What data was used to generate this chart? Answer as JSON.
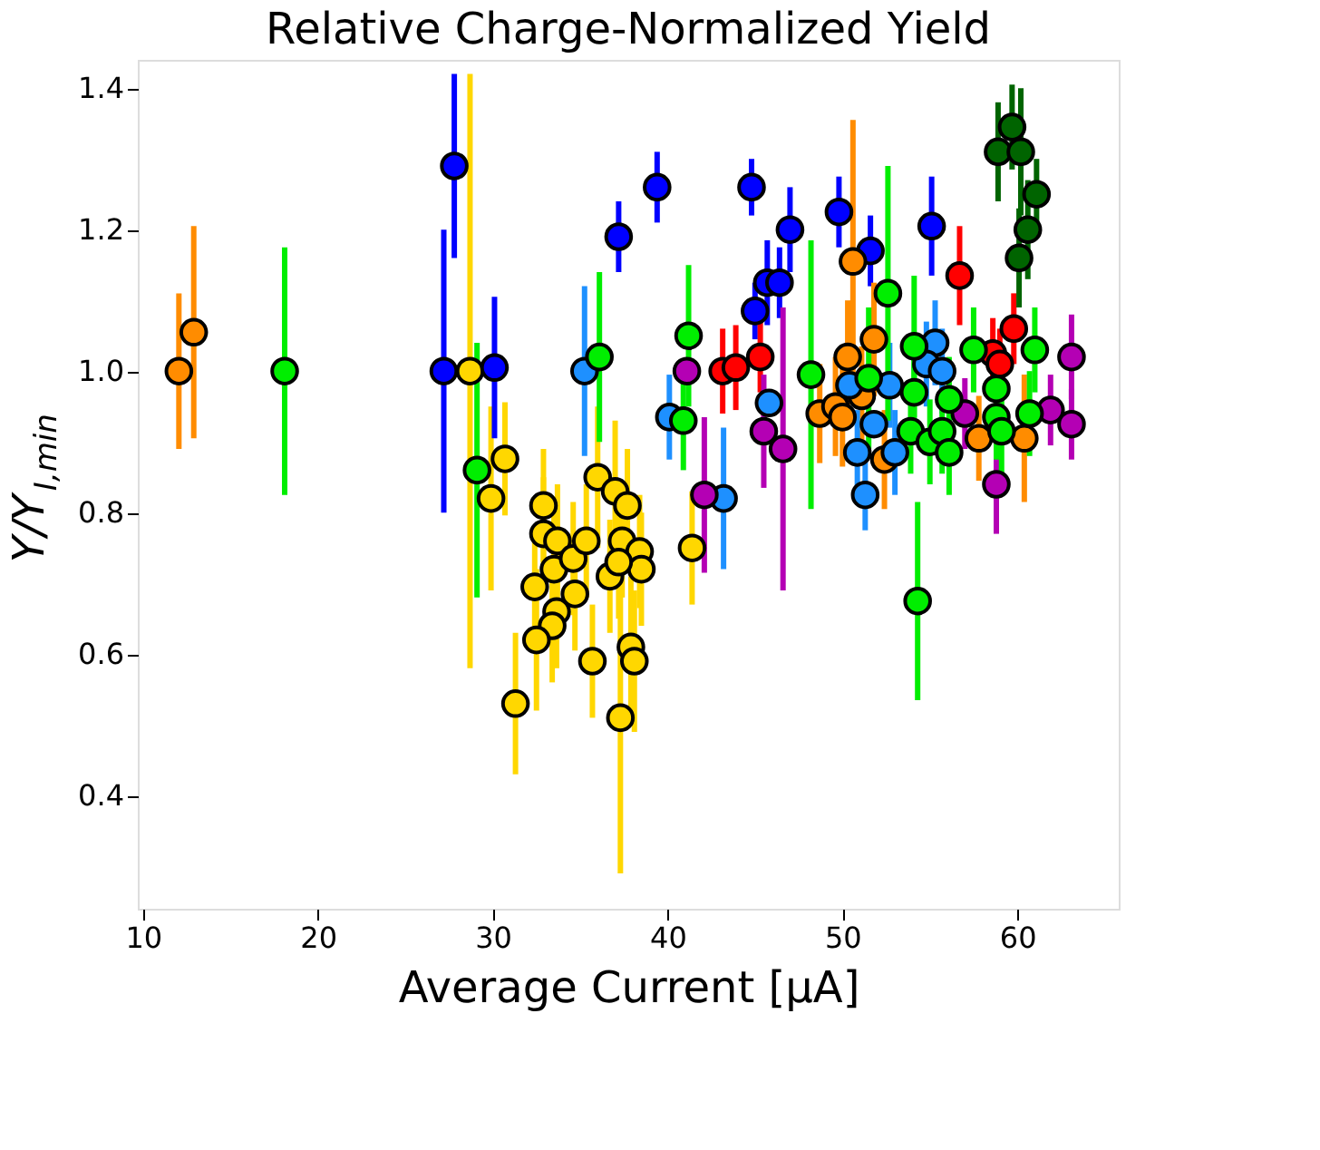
{
  "chart_data": {
    "type": "scatter",
    "title": "Relative Charge-Normalized Yield",
    "xlabel": "Average Current [μA]",
    "ylabel": "Y/Y$_{I,min}$",
    "xlim": [
      9.7,
      65.8
    ],
    "ylim": [
      0.24,
      1.44
    ],
    "xticks": [
      10,
      20,
      30,
      40,
      50,
      60
    ],
    "yticks": [
      0.4,
      0.6,
      0.8,
      {
        "value": 1.0,
        "label": "1.0"
      },
      1.2,
      1.4
    ],
    "grid": false,
    "legend": false,
    "marker": "circle",
    "series": [
      {
        "color": "#ffd700",
        "x": [
          28.7,
          29.9,
          30.7,
          31.3,
          32.9,
          32.9,
          33.7,
          32.4,
          33.5,
          34.6,
          34.7,
          33.65,
          33.4,
          32.5,
          35.35,
          36.0,
          37.0,
          37.7,
          37.4,
          38.4,
          38.5,
          36.7,
          37.2,
          35.7,
          37.9,
          38.1,
          37.3,
          41.4
        ],
        "values": [
          1.0,
          0.82,
          0.876,
          0.53,
          0.81,
          0.77,
          0.76,
          0.695,
          0.72,
          0.735,
          0.685,
          0.66,
          0.64,
          0.62,
          0.76,
          0.85,
          0.83,
          0.81,
          0.76,
          0.745,
          0.72,
          0.71,
          0.73,
          0.59,
          0.61,
          0.59,
          0.51,
          0.75
        ],
        "errors": [
          0.42,
          0.13,
          0.08,
          0.1,
          0.08,
          0.08,
          0.08,
          0.08,
          0.08,
          0.08,
          0.08,
          0.08,
          0.08,
          0.1,
          0.08,
          0.1,
          0.1,
          0.08,
          0.08,
          0.08,
          0.08,
          0.08,
          0.08,
          0.08,
          0.1,
          0.1,
          0.22,
          0.08
        ]
      },
      {
        "color": "#0000ff",
        "x": [
          27.2,
          27.8,
          30.1,
          37.2,
          39.4,
          44.8,
          47.0,
          45.0,
          45.7,
          46.4,
          49.8,
          51.6,
          55.1
        ],
        "values": [
          1.0,
          1.29,
          1.005,
          1.19,
          1.26,
          1.26,
          1.2,
          1.085,
          1.125,
          1.125,
          1.225,
          1.17,
          1.205
        ],
        "errors": [
          0.2,
          0.13,
          0.1,
          0.05,
          0.05,
          0.04,
          0.06,
          0.04,
          0.06,
          0.05,
          0.05,
          0.05,
          0.07
        ]
      },
      {
        "color": "#ff8c00",
        "x": [
          12.05,
          12.9,
          50.6,
          51.8,
          50.3,
          48.7,
          49.6,
          50.0,
          52.4,
          51.1,
          57.8,
          60.4
        ],
        "values": [
          1.0,
          1.055,
          1.155,
          1.045,
          1.02,
          0.94,
          0.95,
          0.935,
          0.875,
          0.965,
          0.905,
          0.905
        ],
        "errors": [
          0.11,
          0.15,
          0.2,
          0.08,
          0.08,
          0.07,
          0.07,
          0.07,
          0.07,
          0.07,
          0.06,
          0.09
        ]
      },
      {
        "color": "#1e90ff",
        "x": [
          35.25,
          40.1,
          43.2,
          45.8,
          51.3,
          51.8,
          53.0,
          52.7,
          55.3,
          54.8,
          55.7,
          50.4,
          50.85
        ],
        "values": [
          1.0,
          0.935,
          0.82,
          0.955,
          0.825,
          0.925,
          0.885,
          0.98,
          1.04,
          1.01,
          1.0,
          0.98,
          0.885
        ],
        "errors": [
          0.12,
          0.06,
          0.1,
          null,
          0.05,
          null,
          0.06,
          0.06,
          0.06,
          0.06,
          0.06,
          null,
          0.06
        ]
      },
      {
        "color": "#ff0000",
        "x": [
          43.15,
          43.9,
          45.3,
          56.7,
          59.8,
          58.6,
          59.0
        ],
        "values": [
          1.0,
          1.005,
          1.02,
          1.135,
          1.06,
          1.025,
          1.01
        ],
        "errors": [
          0.06,
          0.06,
          0.05,
          0.07,
          0.05,
          0.05,
          0.05
        ]
      },
      {
        "color": "#b400b4",
        "x": [
          41.1,
          42.1,
          45.5,
          46.6,
          57.0,
          58.8,
          61.9,
          63.1,
          63.1
        ],
        "values": [
          1.0,
          0.825,
          0.915,
          0.89,
          0.94,
          0.84,
          0.945,
          0.925,
          1.02
        ],
        "errors": [
          null,
          0.11,
          0.08,
          0.2,
          0.05,
          0.07,
          0.05,
          0.05,
          0.06
        ]
      },
      {
        "color": "#00ee00",
        "x": [
          18.1,
          29.1,
          36.1,
          41.2,
          40.9,
          48.2,
          51.5,
          52.6,
          54.1,
          54.3,
          54.1,
          56.1,
          53.9,
          55.0,
          55.7,
          56.1,
          57.5,
          58.8,
          58.8,
          59.1,
          60.7,
          61.0
        ],
        "values": [
          1.0,
          0.86,
          1.02,
          1.05,
          0.93,
          0.995,
          0.99,
          1.11,
          1.035,
          0.675,
          0.97,
          0.96,
          0.915,
          0.9,
          0.915,
          0.885,
          1.03,
          0.975,
          0.935,
          0.915,
          0.94,
          1.03
        ],
        "errors": [
          0.175,
          0.18,
          0.12,
          0.1,
          0.07,
          0.19,
          0.1,
          0.18,
          0.1,
          0.14,
          0.06,
          0.06,
          0.06,
          0.06,
          0.06,
          0.06,
          0.06,
          0.06,
          0.06,
          0.06,
          0.06,
          0.06
        ]
      },
      {
        "color": "#006400",
        "x": [
          59.7,
          58.9,
          60.2,
          61.1,
          60.6,
          60.1
        ],
        "values": [
          1.345,
          1.31,
          1.31,
          1.25,
          1.2,
          1.16
        ],
        "errors": [
          0.06,
          0.07,
          0.09,
          0.05,
          0.07,
          0.07
        ]
      }
    ]
  }
}
